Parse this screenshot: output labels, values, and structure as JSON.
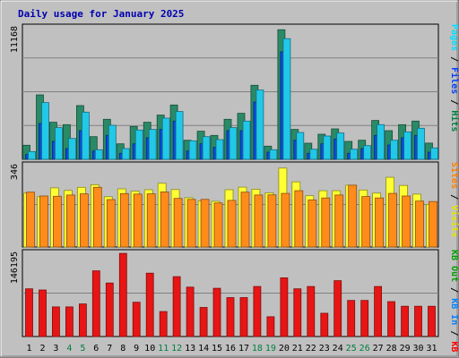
{
  "chart_data": {
    "type": "bar",
    "title": "Daily usage for January 2025",
    "categories": [
      "1",
      "2",
      "3",
      "4",
      "5",
      "6",
      "7",
      "8",
      "9",
      "10",
      "11",
      "12",
      "13",
      "14",
      "15",
      "16",
      "17",
      "18",
      "19",
      "20",
      "21",
      "22",
      "23",
      "24",
      "25",
      "26",
      "27",
      "28",
      "29",
      "30",
      "31"
    ],
    "weekend_day_indices": [
      3,
      4,
      10,
      11,
      17,
      18,
      24,
      25
    ],
    "panels": [
      {
        "id": "top",
        "ymax_label": "11168",
        "ylim": [
          0,
          11168
        ],
        "legend": [
          {
            "text": "Hits",
            "color": "#008040"
          },
          {
            "text": " / ",
            "color": "#000000"
          },
          {
            "text": "Files",
            "color": "#0040ff"
          },
          {
            "text": " / ",
            "color": "#000000"
          },
          {
            "text": "Pages",
            "color": "#00e0ff"
          }
        ],
        "series": [
          {
            "name": "Hits",
            "color": "#2a8a66",
            "values": [
              1180,
              5400,
              3100,
              2900,
              4500,
              1900,
              3350,
              1300,
              2750,
              3100,
              3700,
              4550,
              1600,
              2350,
              2000,
              3350,
              3850,
              6200,
              1100,
              10850,
              2500,
              1350,
              2100,
              2550,
              1500,
              1600,
              3250,
              2400,
              2900,
              3200,
              1360
            ]
          },
          {
            "name": "Files",
            "color": "#0a4de0",
            "values": [
              400,
              3000,
              1500,
              900,
              2400,
              700,
              2000,
              500,
              1300,
              1800,
              2500,
              3200,
              700,
              1300,
              1000,
              2400,
              2400,
              4800,
              600,
              9000,
              1600,
              500,
              1300,
              1700,
              500,
              900,
              2000,
              1200,
              1800,
              2000,
              600
            ]
          },
          {
            "name": "Pages",
            "color": "#22c8e8",
            "values": [
              650,
              4750,
              2650,
              1750,
              3950,
              800,
              2850,
              900,
              2450,
              2500,
              3450,
              4000,
              1550,
              1900,
              1650,
              2650,
              3200,
              5800,
              800,
              10100,
              2250,
              850,
              1950,
              2200,
              850,
              1150,
              2900,
              1600,
              2300,
              2600,
              950
            ]
          }
        ]
      },
      {
        "id": "middle",
        "ymax_label": "346",
        "ylim": [
          0,
          346
        ],
        "legend": [
          {
            "text": "Visits",
            "color": "#e6e600"
          },
          {
            "text": " / ",
            "color": "#000000"
          },
          {
            "text": "Sites",
            "color": "#ff8000"
          }
        ],
        "series": [
          {
            "name": "Visits",
            "color": "#ffff33",
            "values": [
              224,
              209,
              246,
              235,
              248,
              259,
              209,
              242,
              232,
              238,
              265,
              239,
              205,
              192,
              190,
              238,
              249,
              240,
              225,
              328,
              271,
              213,
              234,
              234,
              257,
              237,
              224,
              290,
              256,
              220,
              177
            ]
          },
          {
            "name": "Sites",
            "color": "#ff8c1a",
            "values": [
              228,
              212,
              211,
              216,
              221,
              248,
              197,
              222,
              220,
              221,
              229,
              202,
              198,
              198,
              183,
              194,
              228,
              216,
              217,
              223,
              234,
              196,
              204,
              216,
              257,
              210,
              204,
              223,
              212,
              191,
              189
            ]
          }
        ]
      },
      {
        "id": "bottom",
        "ymax_label": "146195",
        "ylim": [
          0,
          146195
        ],
        "legend": [
          {
            "text": "KB F",
            "color": "#ff0000"
          },
          {
            "text": " / ",
            "color": "#000000"
          },
          {
            "text": "KB In",
            "color": "#0080ff"
          },
          {
            "text": " / ",
            "color": "#000000"
          },
          {
            "text": "KB Out",
            "color": "#00a000"
          }
        ],
        "series": [
          {
            "name": "KB F",
            "color": "#e81515",
            "values": [
              82000,
              80000,
              51000,
              51000,
              56000,
              113000,
              92000,
              143000,
              59000,
              109000,
              43000,
              103000,
              85000,
              50000,
              83000,
              67000,
              67000,
              86000,
              34000,
              101000,
              82000,
              86000,
              40000,
              96000,
              62000,
              62000,
              86000,
              60000,
              52000,
              52000,
              52000
            ]
          }
        ]
      }
    ]
  }
}
